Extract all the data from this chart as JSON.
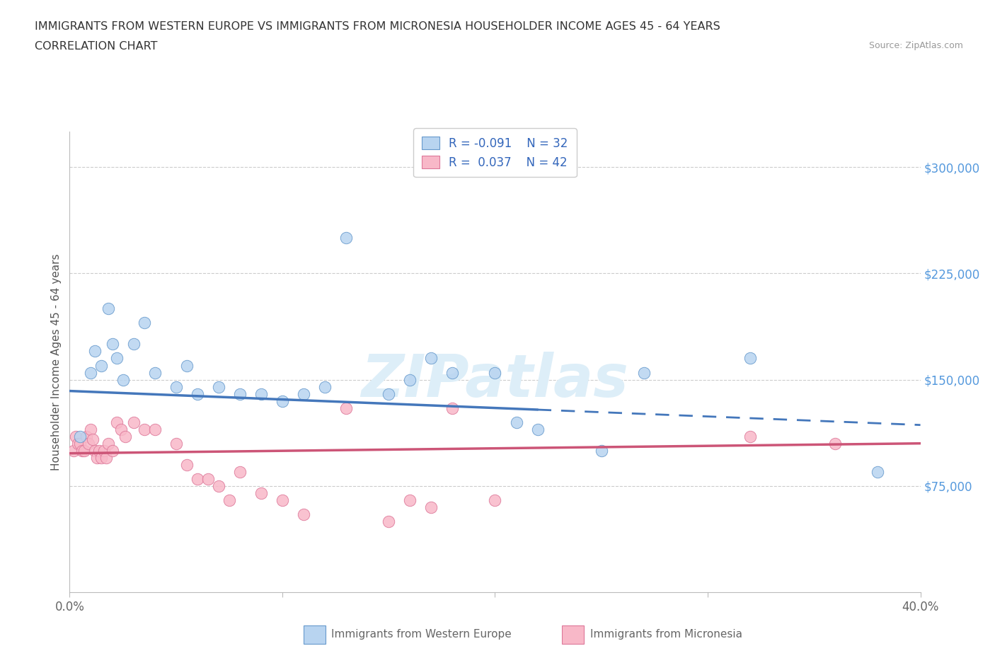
{
  "title_line1": "IMMIGRANTS FROM WESTERN EUROPE VS IMMIGRANTS FROM MICRONESIA HOUSEHOLDER INCOME AGES 45 - 64 YEARS",
  "title_line2": "CORRELATION CHART",
  "source": "Source: ZipAtlas.com",
  "ylabel": "Householder Income Ages 45 - 64 years",
  "xmin": 0.0,
  "xmax": 40.0,
  "ymin": 0,
  "ymax": 325000,
  "yticks": [
    0,
    75000,
    150000,
    225000,
    300000
  ],
  "blue_R": -0.091,
  "blue_N": 32,
  "pink_R": 0.037,
  "pink_N": 42,
  "blue_face_color": "#b8d4f0",
  "blue_edge_color": "#6699cc",
  "blue_line_color": "#4477bb",
  "pink_face_color": "#f8b8c8",
  "pink_edge_color": "#dd7799",
  "pink_line_color": "#cc5577",
  "ytick_color": "#5599dd",
  "watermark_color": "#ddeef8",
  "blue_dots_x": [
    0.5,
    1.0,
    1.2,
    1.5,
    1.8,
    2.0,
    2.2,
    2.5,
    3.0,
    3.5,
    4.0,
    5.0,
    5.5,
    6.0,
    7.0,
    8.0,
    9.0,
    10.0,
    11.0,
    12.0,
    13.0,
    15.0,
    16.0,
    17.0,
    18.0,
    20.0,
    21.0,
    22.0,
    25.0,
    27.0,
    32.0,
    38.0
  ],
  "blue_dots_y": [
    110000,
    155000,
    170000,
    160000,
    200000,
    175000,
    165000,
    150000,
    175000,
    190000,
    155000,
    145000,
    160000,
    140000,
    145000,
    140000,
    140000,
    135000,
    140000,
    145000,
    250000,
    140000,
    150000,
    165000,
    155000,
    155000,
    120000,
    115000,
    100000,
    155000,
    165000,
    85000
  ],
  "pink_dots_x": [
    0.2,
    0.3,
    0.4,
    0.5,
    0.6,
    0.7,
    0.8,
    0.9,
    1.0,
    1.1,
    1.2,
    1.3,
    1.4,
    1.5,
    1.6,
    1.7,
    1.8,
    2.0,
    2.2,
    2.4,
    2.6,
    3.0,
    3.5,
    4.0,
    5.0,
    5.5,
    6.0,
    6.5,
    7.0,
    7.5,
    8.0,
    9.0,
    10.0,
    11.0,
    13.0,
    15.0,
    16.0,
    17.0,
    18.0,
    20.0,
    32.0,
    36.0
  ],
  "pink_dots_y": [
    100000,
    110000,
    105000,
    105000,
    100000,
    100000,
    110000,
    105000,
    115000,
    108000,
    100000,
    95000,
    100000,
    95000,
    100000,
    95000,
    105000,
    100000,
    120000,
    115000,
    110000,
    120000,
    115000,
    115000,
    105000,
    90000,
    80000,
    80000,
    75000,
    65000,
    85000,
    70000,
    65000,
    55000,
    130000,
    50000,
    65000,
    60000,
    130000,
    65000,
    110000,
    105000
  ],
  "blue_solid_xmax": 22.0,
  "blue_line_y0": 142000,
  "blue_line_y40": 118000,
  "pink_line_y0": 98000,
  "pink_line_y40": 105000
}
